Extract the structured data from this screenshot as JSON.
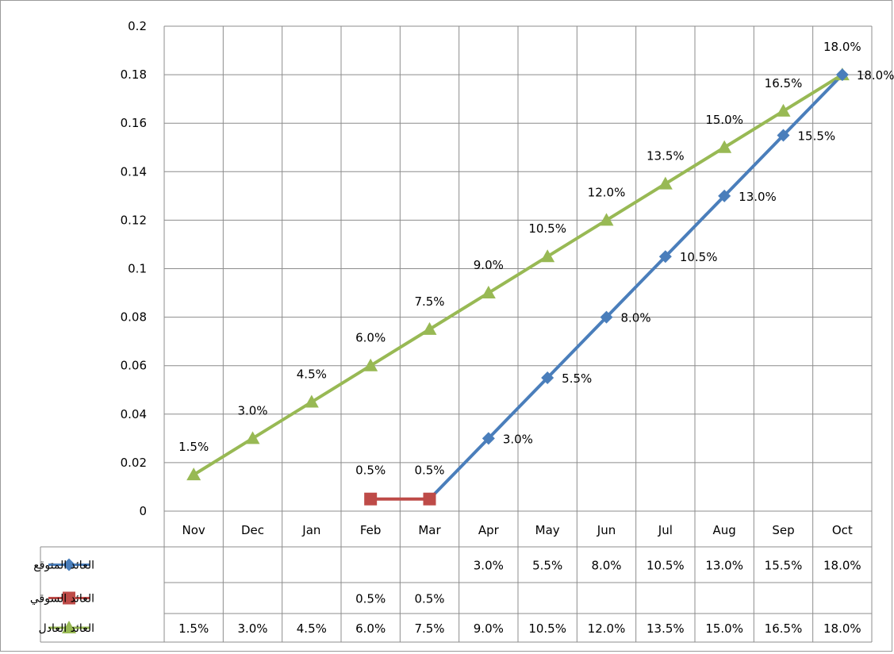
{
  "chart_data": {
    "type": "line",
    "categories": [
      "Nov",
      "Dec",
      "Jan",
      "Feb",
      "Mar",
      "Apr",
      "May",
      "Jun",
      "Jul",
      "Aug",
      "Sep",
      "Oct"
    ],
    "ylim": [
      0,
      0.2
    ],
    "yticks": [
      "0",
      "0.02",
      "0.04",
      "0.06",
      "0.08",
      "0.1",
      "0.12",
      "0.14",
      "0.16",
      "0.18",
      "0.2"
    ],
    "grid": true,
    "legend_placement": "data-table-left",
    "series": [
      {
        "name": "العائد المتوقع",
        "color": "#4a7ebb",
        "marker": "diamond",
        "values": [
          null,
          null,
          null,
          null,
          0.005,
          0.03,
          0.055,
          0.08,
          0.105,
          0.13,
          0.155,
          0.18
        ],
        "labels": [
          "",
          "",
          "",
          "",
          "",
          "3.0%",
          "5.5%",
          "8.0%",
          "10.5%",
          "13.0%",
          "15.5%",
          "18.0%"
        ]
      },
      {
        "name": "العائد السوقي",
        "color": "#be4b48",
        "marker": "square",
        "values": [
          null,
          null,
          null,
          0.005,
          0.005,
          null,
          null,
          null,
          null,
          null,
          null,
          null
        ],
        "labels": [
          "",
          "",
          "",
          "0.5%",
          "0.5%",
          "",
          "",
          "",
          "",
          "",
          "",
          ""
        ]
      },
      {
        "name": "العائد العادل",
        "color": "#98b954",
        "marker": "triangle",
        "values": [
          0.015,
          0.03,
          0.045,
          0.06,
          0.075,
          0.09,
          0.105,
          0.12,
          0.135,
          0.15,
          0.165,
          0.18
        ],
        "labels": [
          "1.5%",
          "3.0%",
          "4.5%",
          "6.0%",
          "7.5%",
          "9.0%",
          "10.5%",
          "12.0%",
          "13.5%",
          "15.0%",
          "16.5%",
          "18.0%"
        ]
      }
    ]
  }
}
